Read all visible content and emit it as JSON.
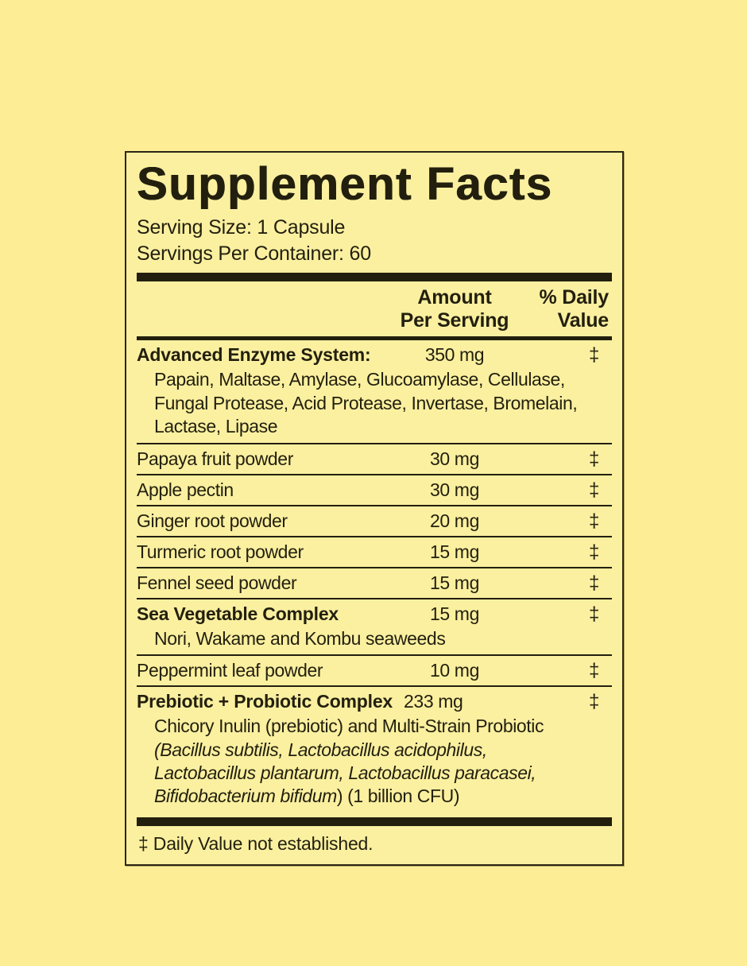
{
  "label": {
    "title": "Supplement Facts",
    "serving_size": "Serving Size: 1 Capsule",
    "servings_per_container": "Servings Per Container: 60",
    "columns": {
      "amount": [
        "Amount",
        "Per Serving"
      ],
      "dv": [
        "% Daily",
        "Value"
      ]
    },
    "footnote": "‡ Daily Value not established.",
    "colors": {
      "background": "#fdee96",
      "panel_background": "#faf0a0",
      "ink": "#231f0e"
    },
    "rows": [
      {
        "name": "Advanced Enzyme System:",
        "bold": true,
        "amount": "350 mg",
        "dv": "‡",
        "amount_inline": false,
        "sub": [
          [
            {
              "text": "Papain, Maltase, Amylase, Glucoamylase, Cellulase,",
              "italic": false
            }
          ],
          [
            {
              "text": "Fungal Protease, Acid Protease, Invertase, Bromelain,",
              "italic": false
            }
          ],
          [
            {
              "text": "Lactase, Lipase",
              "italic": false
            }
          ]
        ],
        "divider_after": "thin"
      },
      {
        "name": "Papaya fruit powder",
        "bold": false,
        "amount": "30 mg",
        "dv": "‡",
        "amount_inline": false,
        "sub": [],
        "divider_after": "thin"
      },
      {
        "name": "Apple pectin",
        "bold": false,
        "amount": "30 mg",
        "dv": "‡",
        "amount_inline": false,
        "sub": [],
        "divider_after": "thin"
      },
      {
        "name": "Ginger root powder",
        "bold": false,
        "amount": "20 mg",
        "dv": "‡",
        "amount_inline": false,
        "sub": [],
        "divider_after": "thin"
      },
      {
        "name": "Turmeric root powder",
        "bold": false,
        "amount": "15 mg",
        "dv": "‡",
        "amount_inline": false,
        "sub": [],
        "divider_after": "thin"
      },
      {
        "name": "Fennel seed powder",
        "bold": false,
        "amount": "15 mg",
        "dv": "‡",
        "amount_inline": false,
        "sub": [],
        "divider_after": "thin"
      },
      {
        "name": "Sea Vegetable Complex",
        "bold": true,
        "amount": "15 mg",
        "dv": "‡",
        "amount_inline": false,
        "sub": [
          [
            {
              "text": "Nori, Wakame and Kombu seaweeds",
              "italic": false
            }
          ]
        ],
        "divider_after": "thin"
      },
      {
        "name": "Peppermint leaf powder",
        "bold": false,
        "amount": "10 mg",
        "dv": "‡",
        "amount_inline": false,
        "sub": [],
        "divider_after": "thin"
      },
      {
        "name": "Prebiotic + Probiotic Complex",
        "bold": true,
        "amount": "233 mg",
        "dv": "‡",
        "amount_inline": true,
        "sub": [
          [
            {
              "text": "Chicory Inulin (prebiotic) and Multi-Strain Probiotic",
              "italic": false
            }
          ],
          [
            {
              "text": "(Bacillus subtilis, Lactobacillus acidophilus,",
              "italic": true
            }
          ],
          [
            {
              "text": "Lactobacillus plantarum, Lactobacillus paracasei,",
              "italic": true
            }
          ],
          [
            {
              "text": "Bifidobacterium bifidum",
              "italic": true
            },
            {
              "text": ") (1 billion CFU)",
              "italic": false
            }
          ]
        ],
        "divider_after": "none"
      }
    ]
  }
}
